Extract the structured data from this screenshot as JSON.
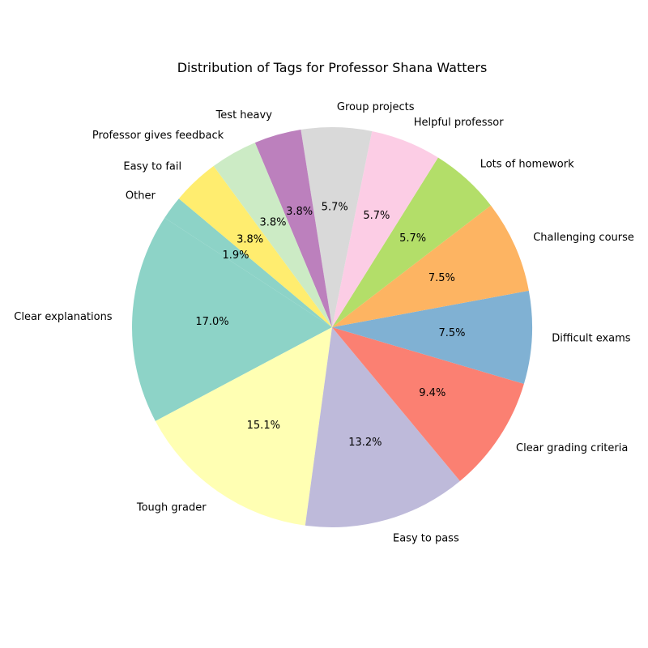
{
  "chart_data": {
    "type": "pie",
    "title": "Distribution of Tags for Professor Shana Watters",
    "start_angle_deg": 140,
    "direction": "counterclockwise",
    "slices": [
      {
        "label": "Other",
        "pct": 1.9,
        "pct_label": "1.9%",
        "color": "#8dd3c7"
      },
      {
        "label": "Clear explanations",
        "pct": 17.0,
        "pct_label": "17.0%",
        "color": "#8dd3c7"
      },
      {
        "label": "Tough grader",
        "pct": 15.1,
        "pct_label": "15.1%",
        "color": "#ffffb3"
      },
      {
        "label": "Easy to pass",
        "pct": 13.2,
        "pct_label": "13.2%",
        "color": "#bebada"
      },
      {
        "label": "Clear grading criteria",
        "pct": 9.4,
        "pct_label": "9.4%",
        "color": "#fb8072"
      },
      {
        "label": "Difficult exams",
        "pct": 7.5,
        "pct_label": "7.5%",
        "color": "#80b1d3"
      },
      {
        "label": "Challenging course",
        "pct": 7.5,
        "pct_label": "7.5%",
        "color": "#fdb462"
      },
      {
        "label": "Lots of homework",
        "pct": 5.7,
        "pct_label": "5.7%",
        "color": "#b3de69"
      },
      {
        "label": "Helpful professor",
        "pct": 5.7,
        "pct_label": "5.7%",
        "color": "#fccde5"
      },
      {
        "label": "Group projects",
        "pct": 5.7,
        "pct_label": "5.7%",
        "color": "#d9d9d9"
      },
      {
        "label": "Test heavy",
        "pct": 3.8,
        "pct_label": "3.8%",
        "color": "#bc80bd"
      },
      {
        "label": "Professor gives feedback",
        "pct": 3.8,
        "pct_label": "3.8%",
        "color": "#ccebc5"
      },
      {
        "label": "Easy to fail",
        "pct": 3.8,
        "pct_label": "3.8%",
        "color": "#ffed6f"
      }
    ]
  }
}
